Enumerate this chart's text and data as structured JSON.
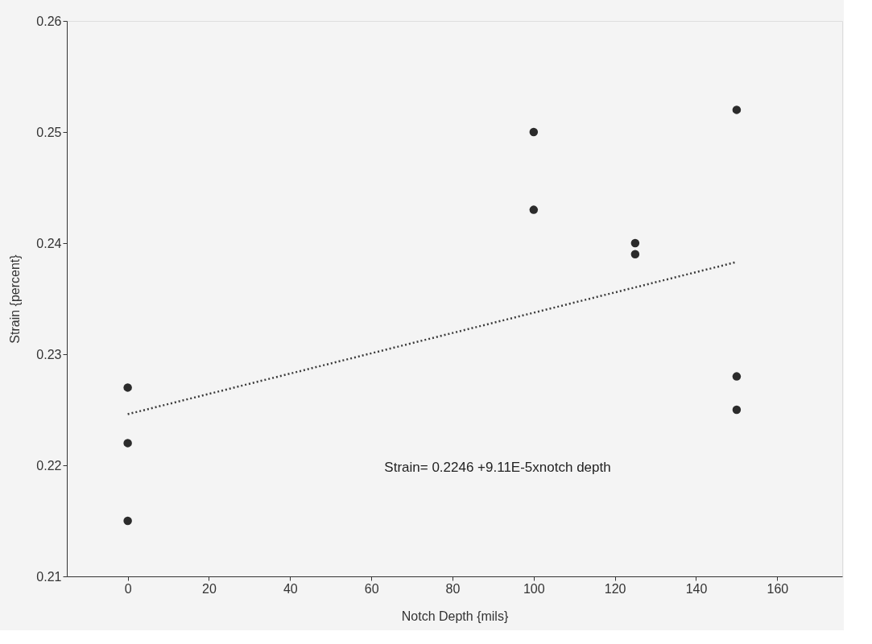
{
  "chart_data": {
    "type": "scatter",
    "xlabel": "Notch Depth {mils}",
    "ylabel": "Strain {percent}",
    "xlim": [
      -15,
      176
    ],
    "ylim": [
      0.21,
      0.26
    ],
    "xticks": [
      0,
      20,
      40,
      60,
      80,
      100,
      120,
      140,
      160
    ],
    "yticks": [
      0.21,
      0.22,
      0.23,
      0.24,
      0.25,
      0.26
    ],
    "grid": false,
    "marker": "circle",
    "series": [
      {
        "color": "#2b2b2b",
        "x": [
          0,
          0,
          0,
          100,
          100,
          125,
          125,
          150,
          150,
          150
        ],
        "values": [
          0.227,
          0.222,
          0.215,
          0.25,
          0.243,
          0.24,
          0.239,
          0.252,
          0.228,
          0.225
        ]
      },
      {
        "type": "line",
        "line_style": "dotted",
        "marker": "none",
        "color": "#3a3a3a",
        "x": [
          0,
          150
        ],
        "values": [
          0.2246,
          0.2383
        ]
      }
    ],
    "annotations": [
      "Strain= 0.2246 +9.11E-5xnotch depth"
    ]
  }
}
